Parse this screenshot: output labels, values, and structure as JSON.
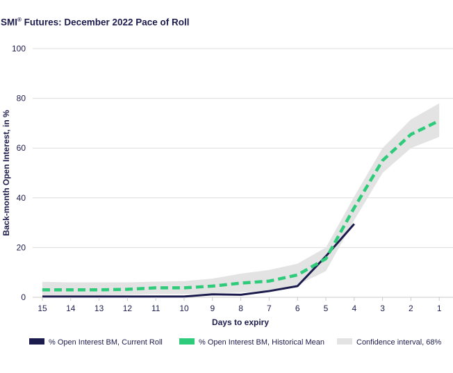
{
  "chart_data": {
    "type": "line",
    "title": "SMI",
    "title_mark": "®",
    "title_rest": " Futures: December 2022 Pace of Roll",
    "xlabel": "Days to expiry",
    "ylabel": "Back-month Open Interest, in %",
    "x": [
      15,
      14,
      13,
      12,
      11,
      10,
      9,
      8,
      7,
      6,
      5,
      4,
      3,
      2,
      1
    ],
    "xlim": [
      15,
      1
    ],
    "ylim": [
      0,
      100
    ],
    "yticks": [
      0,
      20,
      40,
      60,
      80,
      100
    ],
    "grid": true,
    "legend_position": "bottom",
    "series": [
      {
        "name": "% Open Interest BM, Current Roll",
        "style": "solid",
        "color": "#1c1b4d",
        "values": [
          0.3,
          0.3,
          0.3,
          0.3,
          0.3,
          0.3,
          1.2,
          1.0,
          2.5,
          4.5,
          16.5,
          29.5,
          null,
          null,
          null
        ]
      },
      {
        "name": "% Open Interest BM, Historical Mean",
        "style": "dashed",
        "color": "#2ecc7a",
        "values": [
          3.0,
          3.0,
          3.0,
          3.2,
          3.8,
          3.8,
          4.5,
          5.7,
          6.5,
          9.0,
          15.5,
          36.0,
          55.0,
          65.5,
          71.0
        ]
      },
      {
        "name": "Confidence interval, 68%",
        "style": "band",
        "color": "#e3e3e3",
        "lower": [
          0.8,
          0.8,
          0.8,
          1.0,
          1.3,
          1.3,
          1.5,
          2.0,
          2.5,
          5.0,
          10.5,
          31.0,
          50.0,
          60.0,
          64.5
        ],
        "upper": [
          6.2,
          6.0,
          6.0,
          6.0,
          6.3,
          6.5,
          7.5,
          9.5,
          11.0,
          13.5,
          20.0,
          40.5,
          60.0,
          71.5,
          78.0
        ]
      }
    ]
  }
}
